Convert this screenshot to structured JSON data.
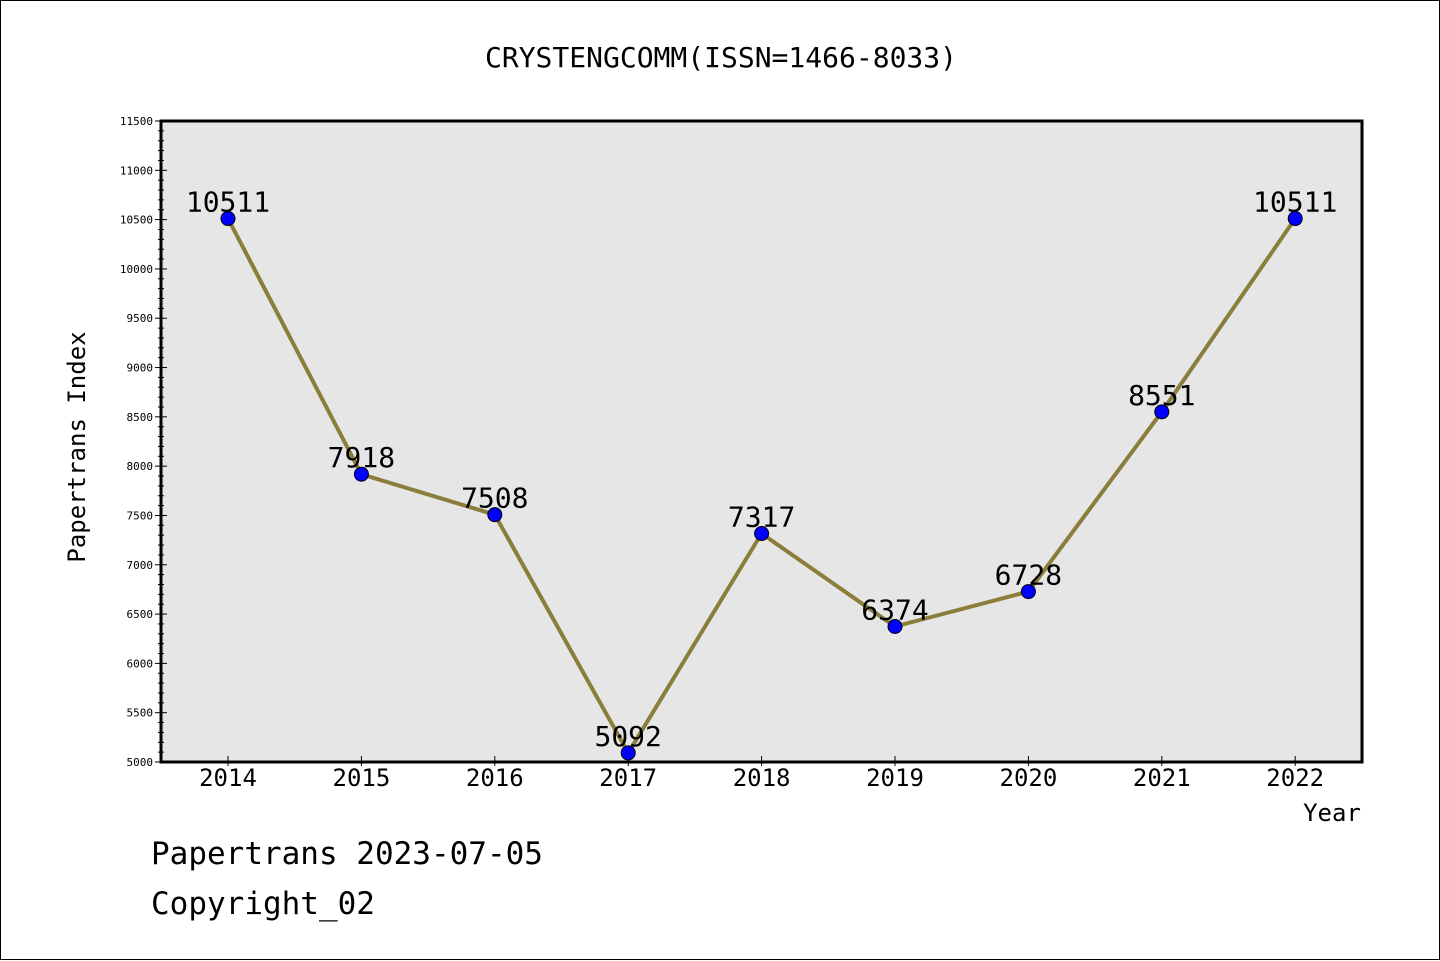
{
  "chart_data": {
    "type": "line",
    "title": "CRYSTENGCOMM(ISSN=1466-8033)",
    "xlabel": "Year",
    "ylabel": "Papertrans Index",
    "categories": [
      "2014",
      "2015",
      "2016",
      "2017",
      "2018",
      "2019",
      "2020",
      "2021",
      "2022"
    ],
    "series": [
      {
        "values": [
          10511,
          7918,
          7508,
          5092,
          7317,
          6374,
          6728,
          8551,
          10511
        ]
      }
    ],
    "data_labels": [
      "10511",
      "7918",
      "7508",
      "5092",
      "7317",
      "6374",
      "6728",
      "8551",
      "10511"
    ],
    "ylim": [
      5000,
      11500
    ],
    "y_major_step": 500,
    "y_minor_step": 100,
    "y_ticks": [
      "5000",
      "5500",
      "6000",
      "6500",
      "7000",
      "7500",
      "8000",
      "8500",
      "9000",
      "9500",
      "10000",
      "10500",
      "11000",
      "11500"
    ],
    "grid": false,
    "colors": {
      "plot_background": "#e6e6e6",
      "line": "#8b7d3a",
      "marker": "#0000ff"
    }
  },
  "footer": {
    "line1": "Papertrans 2023-07-05",
    "line2": "Copyright_02"
  }
}
